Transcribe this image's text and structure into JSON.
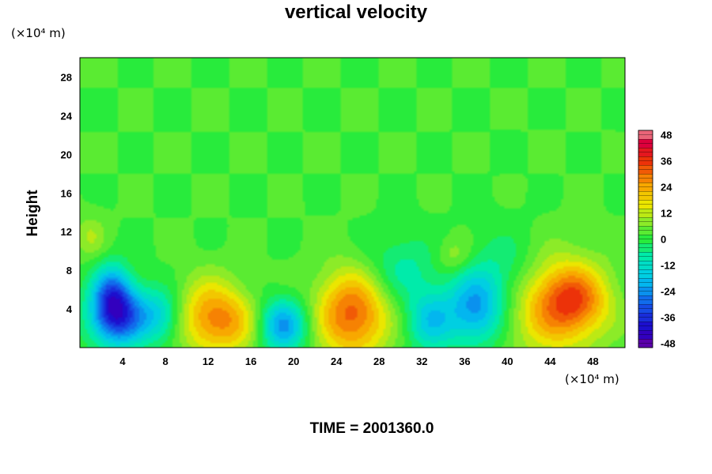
{
  "chart_data": {
    "type": "heatmap",
    "title": "vertical velocity",
    "ylabel": "Height",
    "xlabel": "",
    "y_unit": "(×10⁴ m)",
    "x_unit": "(×10⁴ m)",
    "footer": "TIME = 2001360.0",
    "xlim": [
      0,
      51
    ],
    "ylim": [
      0,
      30
    ],
    "x_ticks": [
      4,
      8,
      12,
      16,
      20,
      24,
      28,
      32,
      36,
      40,
      44,
      48
    ],
    "y_ticks": [
      4,
      8,
      12,
      16,
      20,
      24,
      28
    ],
    "colorbar": {
      "range": [
        -50,
        50
      ],
      "ticks": [
        48,
        36,
        24,
        12,
        0,
        -12,
        -24,
        -36,
        -48
      ]
    },
    "features": [
      {
        "x": 3.5,
        "y": 3.3,
        "value": -38,
        "sx": 1.8,
        "sy": 2.2
      },
      {
        "x": 3.0,
        "y": 6.0,
        "value": -20,
        "sx": 1.2,
        "sy": 2.0
      },
      {
        "x": 7.5,
        "y": 3.3,
        "value": -16,
        "sx": 1.5,
        "sy": 2.0
      },
      {
        "x": 12.0,
        "y": 3.3,
        "value": 20,
        "sx": 2.2,
        "sy": 2.8
      },
      {
        "x": 14.5,
        "y": 2.5,
        "value": 12,
        "sx": 2.0,
        "sy": 2.2
      },
      {
        "x": 19.0,
        "y": 2.3,
        "value": -26,
        "sx": 1.6,
        "sy": 1.9
      },
      {
        "x": 25.5,
        "y": 3.5,
        "value": 30,
        "sx": 2.4,
        "sy": 3.2
      },
      {
        "x": 32.8,
        "y": 2.8,
        "value": -18,
        "sx": 1.6,
        "sy": 2.2
      },
      {
        "x": 37.0,
        "y": 4.0,
        "value": -24,
        "sx": 1.8,
        "sy": 2.6
      },
      {
        "x": 35.0,
        "y": 9.5,
        "value": 8,
        "sx": 1.2,
        "sy": 1.3
      },
      {
        "x": 44.5,
        "y": 4.5,
        "value": 25,
        "sx": 3.2,
        "sy": 3.5
      },
      {
        "x": 46.5,
        "y": 5.0,
        "value": 14,
        "sx": 2.0,
        "sy": 2.2
      },
      {
        "x": 1.0,
        "y": 11.5,
        "value": 8,
        "sx": 1.0,
        "sy": 1.5
      },
      {
        "x": 30.0,
        "y": 8.0,
        "value": -10,
        "sx": 2.5,
        "sy": 2.5
      },
      {
        "x": 40.0,
        "y": 7.5,
        "value": -10,
        "sx": 2.5,
        "sy": 3.0
      }
    ]
  }
}
